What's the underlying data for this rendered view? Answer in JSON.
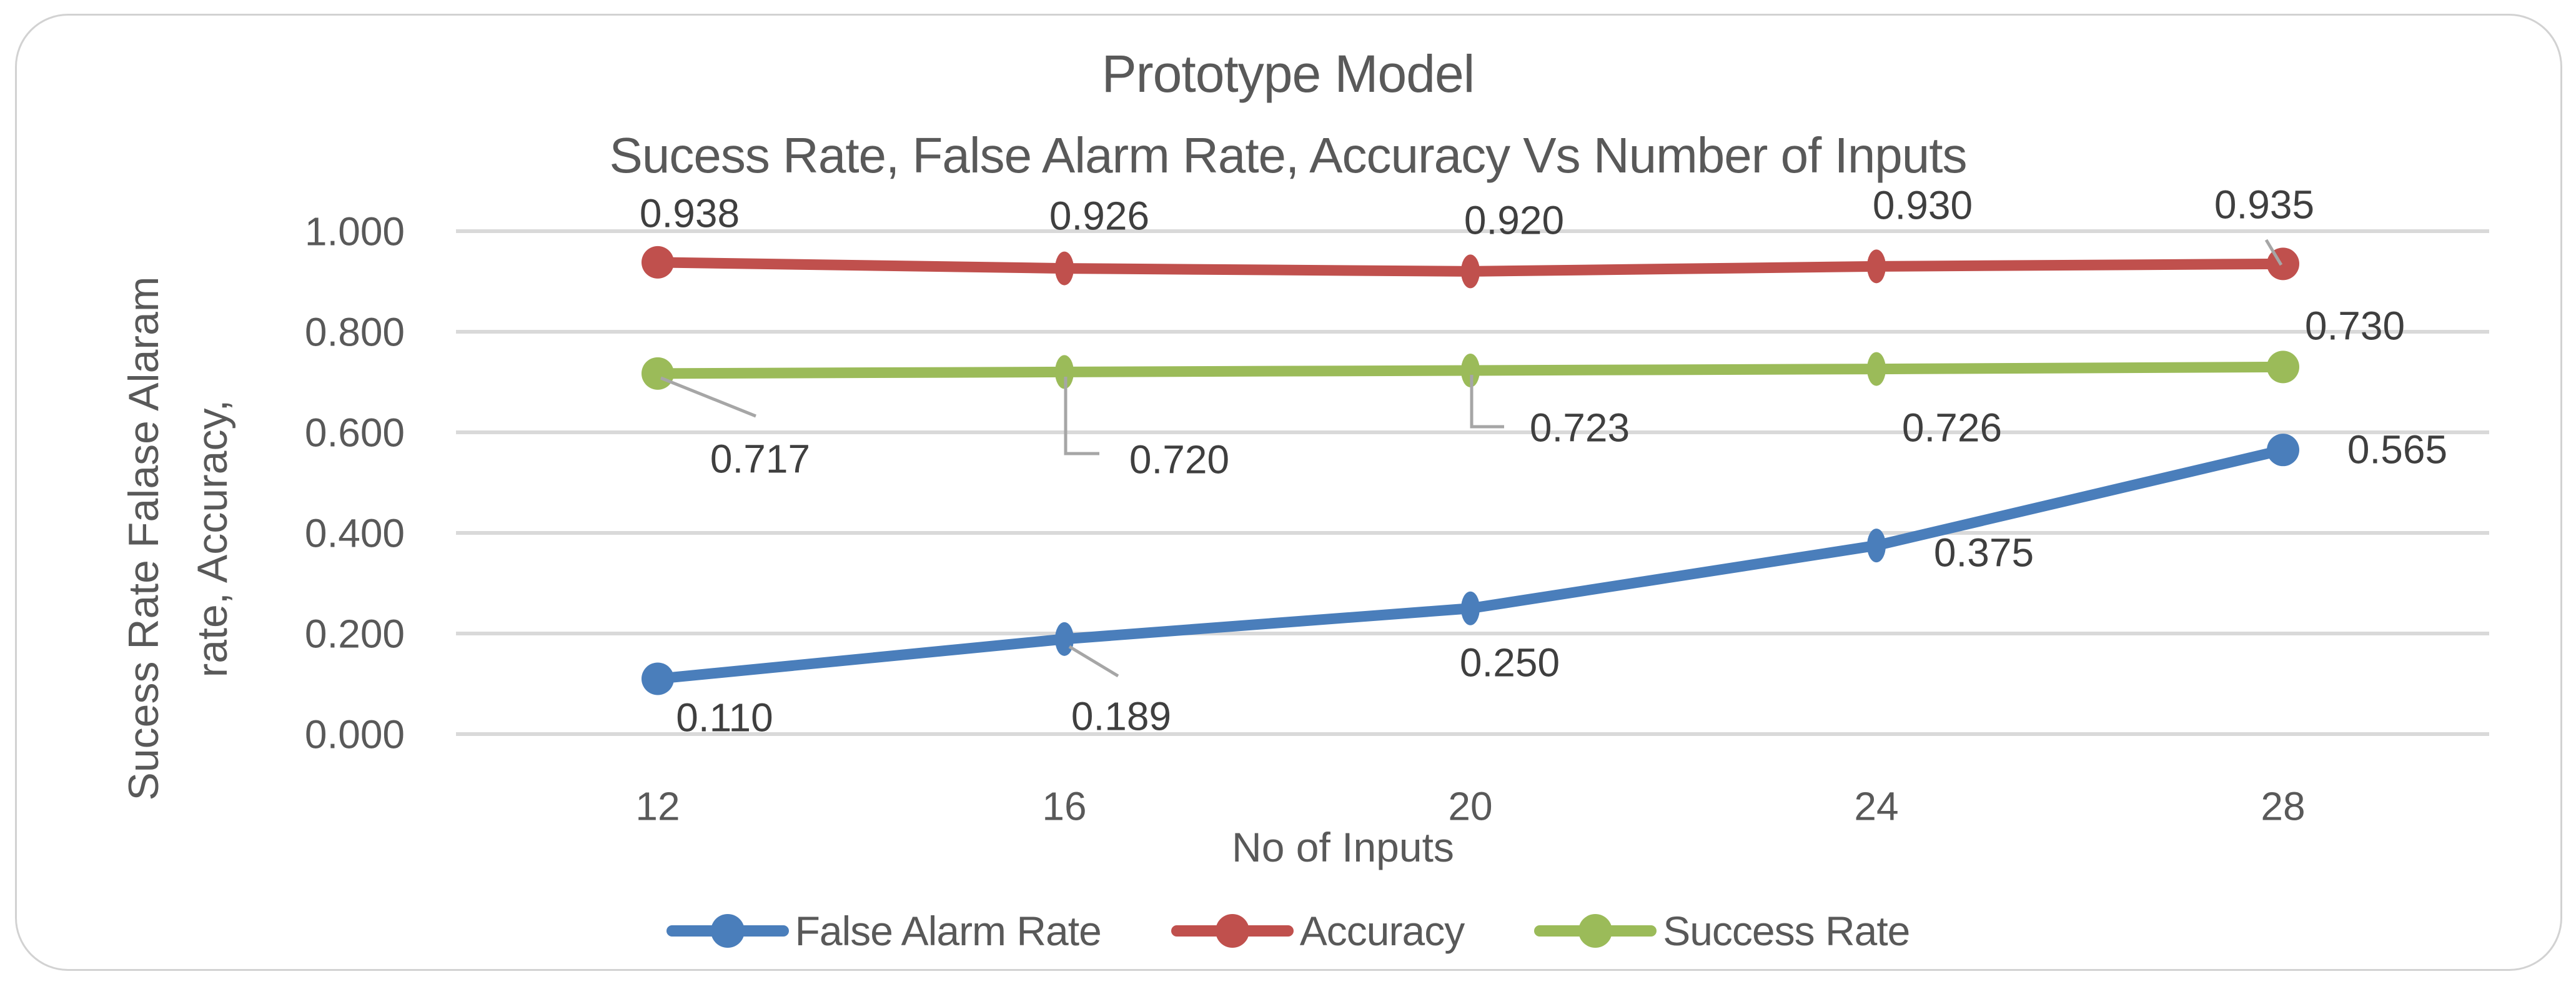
{
  "chart_data": {
    "type": "line",
    "title": "Prototype Model",
    "subtitle": "Sucess Rate, False Alarm Rate, Accuracy Vs Number of Inputs",
    "x": [
      12,
      16,
      20,
      24,
      28
    ],
    "x_tick_labels": [
      "12",
      "16",
      "20",
      "24",
      "28"
    ],
    "xlabel": "No of Inputs",
    "ylabel": "Sucess Rate Falase Alaram rate, Accuracy,",
    "ylabel_lines": [
      "Sucess Rate Falase Alaram",
      "rate, Accuracy,"
    ],
    "ylim": [
      0.0,
      1.0
    ],
    "y_ticks": [
      "1.000",
      "0.800",
      "0.600",
      "0.400",
      "0.200",
      "0.000"
    ],
    "grid": "horizontal",
    "legend_position": "bottom",
    "series": [
      {
        "name": "False Alarm Rate",
        "color": "#4A7EBB",
        "values": [
          0.11,
          0.189,
          0.25,
          0.375,
          0.565
        ],
        "labels": [
          "0.110",
          "0.189",
          "0.250",
          "0.375",
          "0.565"
        ]
      },
      {
        "name": "Accuracy",
        "color": "#C0504D",
        "values": [
          0.938,
          0.926,
          0.92,
          0.93,
          0.935
        ],
        "labels": [
          "0.938",
          "0.926",
          "0.920",
          "0.930",
          "0.935"
        ]
      },
      {
        "name": "Success Rate",
        "color": "#9BBB59",
        "values": [
          0.717,
          0.72,
          0.723,
          0.726,
          0.73
        ],
        "labels": [
          "0.717",
          "0.720",
          "0.723",
          "0.726",
          "0.730"
        ]
      }
    ]
  },
  "colors": {
    "axis_text": "#595959",
    "data_label_text": "#3F3F3F",
    "gridline": "#D9D9D9",
    "leader_line": "#A6A6A6",
    "card_border": "#D2D2D2",
    "background": "#FFFFFF"
  }
}
